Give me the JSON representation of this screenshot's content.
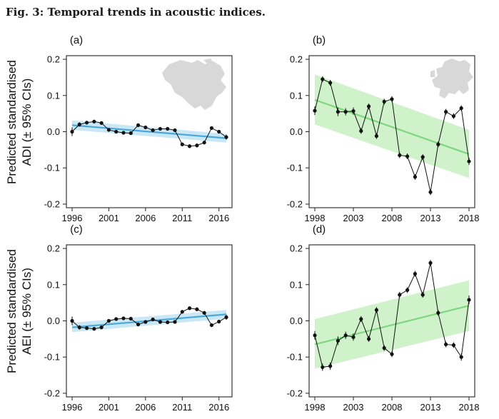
{
  "figure": {
    "title": "Fig. 3: Temporal trends in acoustic indices.",
    "ylabels": [
      {
        "line1": "Predicted standardised",
        "line2": "ADI (± 95% CIs)"
      },
      {
        "line1": "Predicted standardised",
        "line2": "AEI (± 95% CIs)"
      }
    ]
  },
  "colors": {
    "na_line": "#4aa8d8",
    "na_band": "#bfe3f3",
    "eu_line": "#7ed67e",
    "eu_band": "#c8f0c2",
    "points": "#111111",
    "map": "#d8d8d8"
  },
  "chart_data": [
    {
      "type": "line",
      "panel_label": "(a)",
      "map": "north-america-map",
      "xlim": [
        1996,
        2017
      ],
      "ylim": [
        -0.21,
        0.21
      ],
      "xticks": [
        1996,
        2001,
        2006,
        2011,
        2016
      ],
      "yticks": [
        -0.2,
        -0.1,
        0.0,
        0.1,
        0.2
      ],
      "x": [
        1996,
        1997,
        1998,
        1999,
        2000,
        2001,
        2002,
        2003,
        2004,
        2005,
        2006,
        2007,
        2008,
        2009,
        2010,
        2011,
        2012,
        2013,
        2014,
        2015,
        2016,
        2017
      ],
      "y": [
        0.0,
        0.02,
        0.025,
        0.028,
        0.024,
        0.005,
        0.0,
        -0.003,
        -0.004,
        0.018,
        0.012,
        0.004,
        0.008,
        0.008,
        0.004,
        -0.035,
        -0.04,
        -0.038,
        -0.03,
        0.01,
        0.0,
        -0.015
      ],
      "err": [
        0.012,
        0.006,
        0.005,
        0.005,
        0.005,
        0.005,
        0.005,
        0.005,
        0.005,
        0.005,
        0.005,
        0.005,
        0.005,
        0.005,
        0.005,
        0.005,
        0.005,
        0.005,
        0.005,
        0.005,
        0.005,
        0.007
      ],
      "trend": {
        "x": [
          1996,
          2017
        ],
        "y": [
          0.018,
          -0.018
        ],
        "lower": [
          0.005,
          -0.03
        ],
        "upper": [
          0.031,
          -0.006
        ]
      }
    },
    {
      "type": "line",
      "panel_label": "(b)",
      "map": "europe-map",
      "xlim": [
        1998,
        2018
      ],
      "ylim": [
        -0.21,
        0.21
      ],
      "xticks": [
        1998,
        2003,
        2008,
        2013,
        2018
      ],
      "yticks": [
        -0.2,
        -0.1,
        0.0,
        0.1,
        0.2
      ],
      "x": [
        1998,
        1999,
        2000,
        2001,
        2002,
        2003,
        2004,
        2005,
        2006,
        2007,
        2008,
        2009,
        2010,
        2011,
        2012,
        2013,
        2014,
        2015,
        2016,
        2017,
        2018
      ],
      "y": [
        0.058,
        0.145,
        0.135,
        0.055,
        0.055,
        0.057,
        0.002,
        0.07,
        -0.012,
        0.083,
        0.09,
        -0.065,
        -0.068,
        -0.125,
        -0.07,
        -0.167,
        -0.035,
        0.055,
        0.043,
        0.065,
        -0.082
      ],
      "err": [
        0.012,
        0.008,
        0.008,
        0.012,
        0.01,
        0.01,
        0.008,
        0.008,
        0.008,
        0.008,
        0.008,
        0.008,
        0.008,
        0.008,
        0.008,
        0.008,
        0.008,
        0.008,
        0.008,
        0.008,
        0.01
      ],
      "trend": {
        "x": [
          1998,
          2018
        ],
        "y": [
          0.088,
          -0.062
        ],
        "lower": [
          0.02,
          -0.128
        ],
        "upper": [
          0.158,
          0.005
        ]
      }
    },
    {
      "type": "line",
      "panel_label": "(c)",
      "map": null,
      "xlim": [
        1996,
        2017
      ],
      "ylim": [
        -0.21,
        0.21
      ],
      "xticks": [
        1996,
        2001,
        2006,
        2011,
        2016
      ],
      "yticks": [
        -0.2,
        -0.1,
        0.0,
        0.1,
        0.2
      ],
      "x": [
        1996,
        1997,
        1998,
        1999,
        2000,
        2001,
        2002,
        2003,
        2004,
        2005,
        2006,
        2007,
        2008,
        2009,
        2010,
        2011,
        2012,
        2013,
        2014,
        2015,
        2016,
        2017
      ],
      "y": [
        0.0,
        -0.018,
        -0.02,
        -0.022,
        -0.018,
        0.0,
        0.005,
        0.007,
        0.006,
        -0.01,
        -0.003,
        0.004,
        -0.003,
        -0.004,
        -0.003,
        0.025,
        0.035,
        0.032,
        0.022,
        -0.012,
        -0.002,
        0.01
      ],
      "err": [
        0.012,
        0.006,
        0.005,
        0.005,
        0.005,
        0.005,
        0.005,
        0.005,
        0.005,
        0.005,
        0.005,
        0.005,
        0.005,
        0.005,
        0.005,
        0.005,
        0.005,
        0.005,
        0.005,
        0.005,
        0.005,
        0.007
      ],
      "trend": {
        "x": [
          1996,
          2017
        ],
        "y": [
          -0.018,
          0.018
        ],
        "lower": [
          -0.031,
          0.006
        ],
        "upper": [
          -0.005,
          0.03
        ]
      }
    },
    {
      "type": "line",
      "panel_label": "(d)",
      "map": null,
      "xlim": [
        1998,
        2018
      ],
      "ylim": [
        -0.21,
        0.21
      ],
      "xticks": [
        1998,
        2003,
        2008,
        2013,
        2018
      ],
      "yticks": [
        -0.2,
        -0.1,
        0.0,
        0.1,
        0.2
      ],
      "x": [
        1998,
        1999,
        2000,
        2001,
        2002,
        2003,
        2004,
        2005,
        2006,
        2007,
        2008,
        2009,
        2010,
        2011,
        2012,
        2013,
        2014,
        2015,
        2016,
        2017,
        2018
      ],
      "y": [
        -0.04,
        -0.128,
        -0.125,
        -0.055,
        -0.04,
        -0.045,
        0.005,
        -0.05,
        0.03,
        -0.075,
        -0.092,
        0.072,
        0.085,
        0.13,
        0.072,
        0.16,
        0.022,
        -0.065,
        -0.067,
        -0.1,
        0.058
      ],
      "err": [
        0.012,
        0.01,
        0.01,
        0.012,
        0.01,
        0.01,
        0.008,
        0.008,
        0.008,
        0.008,
        0.008,
        0.008,
        0.008,
        0.008,
        0.008,
        0.008,
        0.008,
        0.008,
        0.008,
        0.01,
        0.012
      ],
      "trend": {
        "x": [
          1998,
          2018
        ],
        "y": [
          -0.065,
          0.042
        ],
        "lower": [
          -0.132,
          -0.028
        ],
        "upper": [
          0.005,
          0.112
        ]
      }
    }
  ]
}
